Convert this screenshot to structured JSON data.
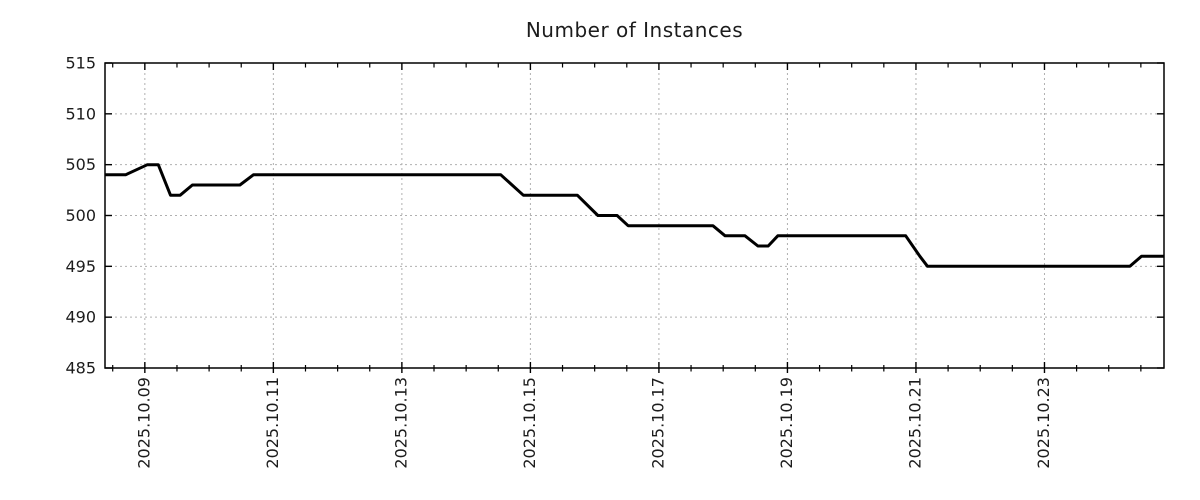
{
  "chart_data": {
    "type": "line",
    "title": "Number of Instances",
    "xlabel": "",
    "ylabel": "",
    "legend": false,
    "grid": true,
    "grid_style": "dotted",
    "x_unit": "days since 2025-10-08 00:00",
    "x_domain": [
      0.38,
      16.86
    ],
    "y_domain": [
      485,
      515
    ],
    "y_ticks": [
      485,
      490,
      495,
      500,
      505,
      510,
      515
    ],
    "x_major_ticks": [
      {
        "pos": 1,
        "label": "2025.10.09"
      },
      {
        "pos": 3,
        "label": "2025.10.11"
      },
      {
        "pos": 5,
        "label": "2025.10.13"
      },
      {
        "pos": 7,
        "label": "2025.10.15"
      },
      {
        "pos": 9,
        "label": "2025.10.17"
      },
      {
        "pos": 11,
        "label": "2025.10.19"
      },
      {
        "pos": 13,
        "label": "2025.10.21"
      },
      {
        "pos": 15,
        "label": "2025.10.23"
      }
    ],
    "x_minor_step": 0.5,
    "series": [
      {
        "name": "instances",
        "color": "#000000",
        "points": [
          [
            0.38,
            504
          ],
          [
            0.7,
            504
          ],
          [
            1.04,
            505
          ],
          [
            1.21,
            505
          ],
          [
            1.4,
            502
          ],
          [
            1.55,
            502
          ],
          [
            1.74,
            503
          ],
          [
            2.48,
            503
          ],
          [
            2.69,
            504
          ],
          [
            6.54,
            504
          ],
          [
            6.89,
            502
          ],
          [
            7.73,
            502
          ],
          [
            8.05,
            500
          ],
          [
            8.35,
            500
          ],
          [
            8.52,
            499
          ],
          [
            9.84,
            499
          ],
          [
            10.03,
            498
          ],
          [
            10.34,
            498
          ],
          [
            10.54,
            497
          ],
          [
            10.7,
            497
          ],
          [
            10.85,
            498
          ],
          [
            12.84,
            498
          ],
          [
            13.06,
            496
          ],
          [
            13.18,
            495
          ],
          [
            16.33,
            495
          ],
          [
            16.51,
            496
          ],
          [
            16.86,
            496
          ]
        ]
      }
    ],
    "colors": {
      "line": "#000000",
      "grid": "#b0b0b0",
      "border": "#000000",
      "text": "#1c1c1c",
      "background": "#ffffff"
    }
  }
}
